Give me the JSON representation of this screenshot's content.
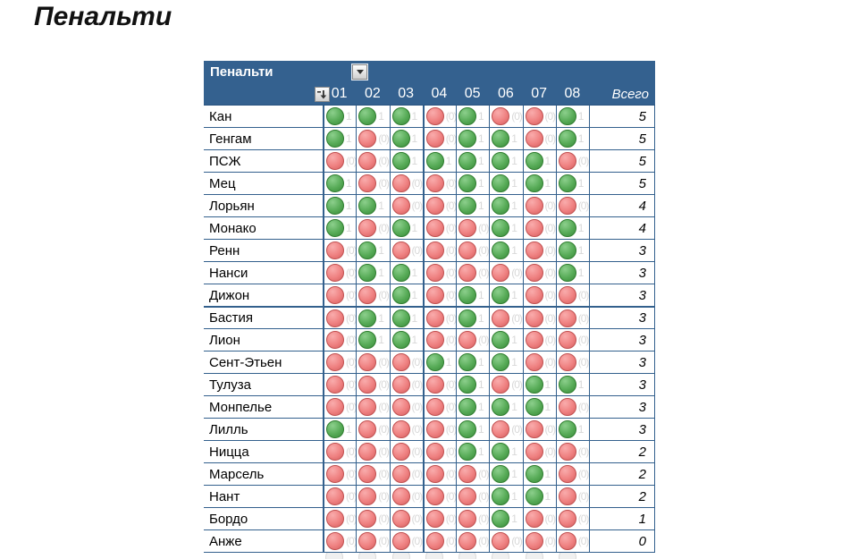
{
  "page_title": "Пенальти",
  "table": {
    "header_title": "Пенальти",
    "columns": [
      "01",
      "02",
      "03",
      "04",
      "05",
      "06",
      "07",
      "08"
    ],
    "total_label": "Всего",
    "green_value_label": "1",
    "red_value_label": "(0)",
    "rows": [
      {
        "team": "Кан",
        "results": [
          1,
          1,
          1,
          0,
          1,
          0,
          0,
          1
        ],
        "total": 5
      },
      {
        "team": "Генгам",
        "results": [
          1,
          0,
          1,
          0,
          1,
          1,
          0,
          1
        ],
        "total": 5
      },
      {
        "team": "ПСЖ",
        "results": [
          0,
          0,
          1,
          1,
          1,
          1,
          1,
          0
        ],
        "total": 5
      },
      {
        "team": "Мец",
        "results": [
          1,
          0,
          0,
          0,
          1,
          1,
          1,
          1
        ],
        "total": 5
      },
      {
        "team": "Лорьян",
        "results": [
          1,
          1,
          0,
          0,
          1,
          1,
          0,
          0
        ],
        "total": 4
      },
      {
        "team": "Монако",
        "results": [
          1,
          0,
          1,
          0,
          0,
          1,
          0,
          1
        ],
        "total": 4
      },
      {
        "team": "Ренн",
        "results": [
          0,
          1,
          0,
          0,
          0,
          1,
          0,
          1
        ],
        "total": 3
      },
      {
        "team": "Нанси",
        "results": [
          0,
          1,
          1,
          0,
          0,
          0,
          0,
          1
        ],
        "total": 3
      },
      {
        "team": "Дижон",
        "results": [
          0,
          0,
          1,
          0,
          1,
          1,
          0,
          0
        ],
        "total": 3
      },
      {
        "team": "Бастия",
        "results": [
          0,
          1,
          1,
          0,
          1,
          0,
          0,
          0
        ],
        "total": 3
      },
      {
        "team": "Лион",
        "results": [
          0,
          1,
          1,
          0,
          0,
          1,
          0,
          0
        ],
        "total": 3
      },
      {
        "team": "Сент-Этьен",
        "results": [
          0,
          0,
          0,
          1,
          1,
          1,
          0,
          0
        ],
        "total": 3
      },
      {
        "team": "Тулуза",
        "results": [
          0,
          0,
          0,
          0,
          1,
          0,
          1,
          1
        ],
        "total": 3
      },
      {
        "team": "Монпелье",
        "results": [
          0,
          0,
          0,
          0,
          1,
          1,
          1,
          0
        ],
        "total": 3
      },
      {
        "team": "Лилль",
        "results": [
          1,
          0,
          0,
          0,
          1,
          0,
          0,
          1
        ],
        "total": 3
      },
      {
        "team": "Ницца",
        "results": [
          0,
          0,
          0,
          0,
          1,
          1,
          0,
          0
        ],
        "total": 2
      },
      {
        "team": "Марсель",
        "results": [
          0,
          0,
          0,
          0,
          0,
          1,
          1,
          0
        ],
        "total": 2
      },
      {
        "team": "Нант",
        "results": [
          0,
          0,
          0,
          0,
          0,
          1,
          1,
          0
        ],
        "total": 2
      },
      {
        "team": "Бордо",
        "results": [
          0,
          0,
          0,
          0,
          0,
          1,
          0,
          0
        ],
        "total": 1
      },
      {
        "team": "Анже",
        "results": [
          0,
          0,
          0,
          0,
          0,
          0,
          0,
          0
        ],
        "total": 0
      }
    ],
    "group_separator_before_row": 9
  },
  "colors": {
    "header_bg": "#34618F",
    "grid_line": "#33608D",
    "green": "#57AB57",
    "red": "#EF8181",
    "faint_text": "#D8D8D8"
  }
}
